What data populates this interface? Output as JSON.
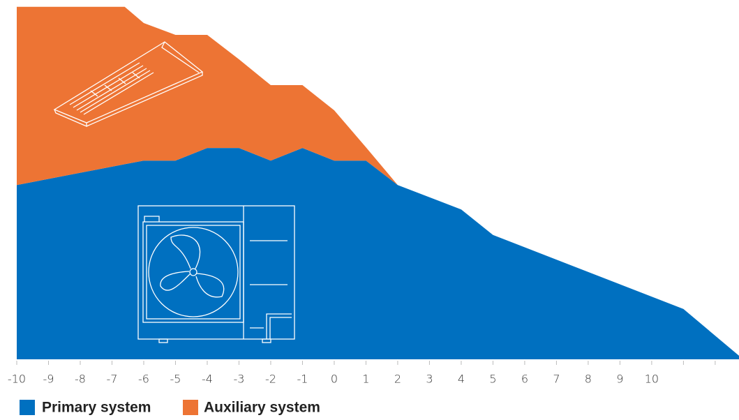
{
  "chart_data": {
    "type": "stacked_area",
    "x": [
      -10,
      -6.6,
      -6,
      -5,
      -4,
      -3,
      -2,
      -1,
      0,
      1,
      2,
      4,
      5,
      11,
      12.75
    ],
    "series": [
      {
        "name": "Primary system",
        "color": "#0070c0",
        "values": [
          48.5,
          54.3,
          55.3,
          55.3,
          58.8,
          58.8,
          55.3,
          58.8,
          55.3,
          55.3,
          48.5,
          41.7,
          34.6,
          14.0,
          1.0
        ]
      },
      {
        "name": "Auxiliary system",
        "color": "#ed7434",
        "values": [
          49.6,
          43.8,
          38.3,
          35.0,
          31.5,
          24.7,
          21.0,
          17.5,
          14.0,
          3.7,
          0,
          0,
          0,
          0,
          0
        ]
      }
    ],
    "xlim": [
      -10,
      12.75
    ],
    "ylim": [
      0,
      100
    ],
    "xticks": [
      -10,
      -9,
      -8,
      -7,
      -6,
      -5,
      -4,
      -3,
      -2,
      -1,
      0,
      1,
      2,
      3,
      4,
      5,
      6,
      7,
      8,
      9,
      10,
      {
        "value": 11,
        "label": null
      },
      {
        "value": 12,
        "label": null
      }
    ]
  }
}
